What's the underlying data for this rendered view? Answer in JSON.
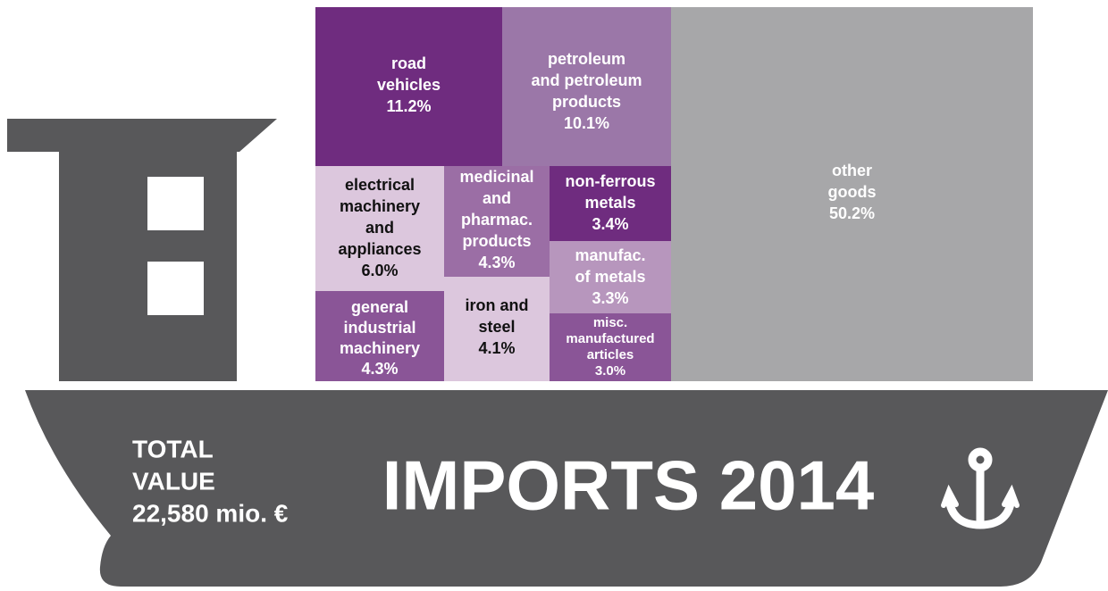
{
  "chart_data": {
    "type": "treemap",
    "title": "IMPORTS 2014",
    "total_label": [
      "TOTAL",
      "VALUE"
    ],
    "total_value": "22,580 mio. €",
    "categories": [
      [
        "road",
        "vehicles"
      ],
      [
        "petroleum",
        "and petroleum",
        "products"
      ],
      [
        "other",
        "goods"
      ],
      [
        "electrical",
        "machinery",
        "and",
        "appliances"
      ],
      [
        "medicinal",
        "and",
        "pharmac.",
        "products"
      ],
      [
        "non-ferrous",
        "metals"
      ],
      [
        "manufac.",
        "of metals"
      ],
      [
        "general",
        "industrial",
        "machinery"
      ],
      [
        "iron and",
        "steel"
      ],
      [
        "misc.",
        "manufactured",
        "articles"
      ]
    ],
    "values": [
      11.2,
      10.1,
      50.2,
      6.0,
      4.3,
      3.4,
      3.3,
      4.3,
      4.1,
      3.0
    ],
    "value_labels": [
      "11.2%",
      "10.1%",
      "50.2%",
      "6.0%",
      "4.3%",
      "3.4%",
      "3.3%",
      "4.3%",
      "4.1%",
      "3.0%"
    ],
    "colors": [
      "#6f2c7f",
      "#9b77a8",
      "#a7a7a9",
      "#dcc7dd",
      "#9b6ea5",
      "#6f2c7f",
      "#b796bd",
      "#8a5597",
      "#dcc7dd",
      "#8a5597"
    ],
    "text_colors": [
      "#ffffff",
      "#ffffff",
      "#ffffff",
      "#111111",
      "#ffffff",
      "#ffffff",
      "#ffffff",
      "#ffffff",
      "#111111",
      "#ffffff"
    ]
  }
}
